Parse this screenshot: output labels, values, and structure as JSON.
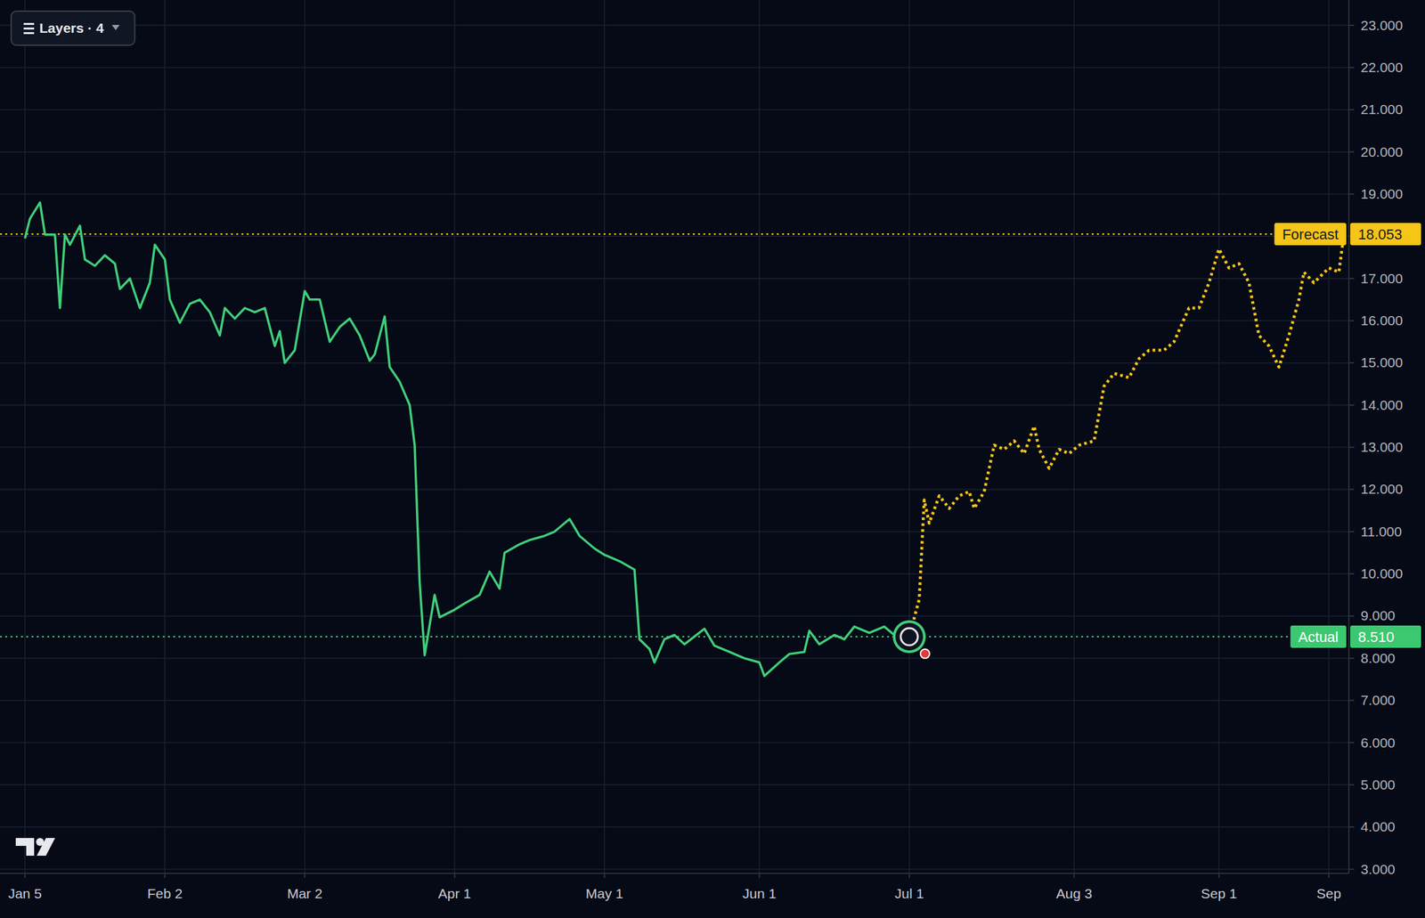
{
  "chart_data": {
    "type": "line",
    "grid": true,
    "tick_labels": true,
    "xlim": [
      0,
      270
    ],
    "ylim": [
      2.9,
      23.6
    ],
    "xticks": [
      {
        "value": 5,
        "label": "Jan 5"
      },
      {
        "value": 33,
        "label": "Feb 2"
      },
      {
        "value": 61,
        "label": "Mar 2"
      },
      {
        "value": 91,
        "label": "Apr 1"
      },
      {
        "value": 121,
        "label": "May 1"
      },
      {
        "value": 152,
        "label": "Jun 1"
      },
      {
        "value": 182,
        "label": "Jul 1"
      },
      {
        "value": 215,
        "label": "Aug 3"
      },
      {
        "value": 244,
        "label": "Sep 1"
      },
      {
        "value": 266,
        "label": "Sep"
      }
    ],
    "yticks": [
      {
        "value": 3,
        "label": "3.000"
      },
      {
        "value": 4,
        "label": "4.000"
      },
      {
        "value": 5,
        "label": "5.000"
      },
      {
        "value": 6,
        "label": "6.000"
      },
      {
        "value": 7,
        "label": "7.000"
      },
      {
        "value": 8,
        "label": "8.000"
      },
      {
        "value": 9,
        "label": "9.000"
      },
      {
        "value": 10,
        "label": "10.000"
      },
      {
        "value": 11,
        "label": "11.000"
      },
      {
        "value": 12,
        "label": "12.000"
      },
      {
        "value": 13,
        "label": "13.000"
      },
      {
        "value": 14,
        "label": "14.000"
      },
      {
        "value": 15,
        "label": "15.000"
      },
      {
        "value": 16,
        "label": "16.000"
      },
      {
        "value": 17,
        "label": "17.000"
      },
      {
        "value": 18,
        "label": "18.000"
      },
      {
        "value": 19,
        "label": "19.000"
      },
      {
        "value": 20,
        "label": "20.000"
      },
      {
        "value": 21,
        "label": "21.000"
      },
      {
        "value": 22,
        "label": "22.000"
      },
      {
        "value": 23,
        "label": "23.000"
      }
    ],
    "series": [
      {
        "color": "#3fcf7a",
        "line_style": "solid",
        "x": [
          5,
          6,
          8,
          9,
          11,
          12,
          13,
          14,
          16,
          17,
          19,
          21,
          23,
          24,
          26,
          28,
          30,
          31,
          33,
          34,
          36,
          38,
          40,
          42,
          44,
          45,
          47,
          49,
          51,
          53,
          55,
          56,
          57,
          59,
          61,
          62,
          64,
          66,
          68,
          70,
          72,
          74,
          75,
          77,
          78,
          80,
          82,
          83,
          84,
          85,
          87,
          88,
          91,
          93,
          96,
          98,
          100,
          101,
          104,
          106,
          109,
          111,
          114,
          116,
          119,
          121,
          124,
          127,
          128,
          130,
          131,
          133,
          135,
          137,
          141,
          143,
          146,
          149,
          152,
          153,
          156,
          158,
          161,
          162,
          164,
          167,
          169,
          171,
          174,
          177,
          179,
          182
        ],
        "values": [
          17.95,
          18.42,
          18.8,
          18.04,
          18.04,
          16.3,
          18.04,
          17.8,
          18.25,
          17.45,
          17.3,
          17.55,
          17.35,
          16.75,
          17.0,
          16.3,
          16.9,
          17.8,
          17.45,
          16.5,
          15.95,
          16.4,
          16.5,
          16.2,
          15.65,
          16.3,
          16.05,
          16.3,
          16.2,
          16.3,
          15.4,
          15.75,
          15.0,
          15.3,
          16.7,
          16.5,
          16.5,
          15.5,
          15.85,
          16.05,
          15.65,
          15.05,
          15.2,
          16.1,
          14.9,
          14.55,
          14.0,
          13.05,
          9.8,
          8.07,
          9.5,
          8.97,
          9.15,
          9.3,
          9.5,
          10.05,
          9.65,
          10.5,
          10.7,
          10.8,
          10.9,
          11.0,
          11.3,
          10.9,
          10.6,
          10.45,
          10.3,
          10.1,
          8.45,
          8.22,
          7.9,
          8.45,
          8.55,
          8.33,
          8.7,
          8.3,
          8.15,
          8.0,
          7.9,
          7.58,
          7.9,
          8.1,
          8.15,
          8.65,
          8.33,
          8.55,
          8.45,
          8.75,
          8.6,
          8.75,
          8.55,
          8.51
        ]
      },
      {
        "color": "#f5c518",
        "line_style": "dotted",
        "x": [
          182,
          184,
          185,
          186,
          188,
          190,
          192,
          194,
          195,
          197,
          199,
          201,
          203,
          205,
          207,
          208,
          210,
          212,
          214,
          216,
          219,
          221,
          223,
          226,
          228,
          230,
          233,
          235,
          238,
          240,
          242,
          244,
          246,
          248,
          250,
          252,
          254,
          256,
          258,
          260,
          261,
          263,
          266,
          268,
          269
        ],
        "values": [
          8.51,
          9.4,
          11.75,
          11.2,
          11.85,
          11.55,
          11.85,
          11.95,
          11.55,
          11.95,
          13.05,
          12.95,
          13.15,
          12.85,
          13.5,
          12.95,
          12.5,
          12.95,
          12.85,
          13.05,
          13.15,
          14.45,
          14.75,
          14.65,
          15.1,
          15.3,
          15.3,
          15.5,
          16.3,
          16.3,
          16.9,
          17.7,
          17.25,
          17.35,
          16.9,
          15.65,
          15.4,
          14.9,
          15.65,
          16.5,
          17.15,
          16.9,
          17.25,
          17.15,
          18.053
        ]
      }
    ],
    "annotations": [
      {
        "text": "Forecast",
        "value": 18.053,
        "label": "18.053",
        "color": "#f5c518"
      },
      {
        "text": "Actual",
        "value": 8.51,
        "label": "8.510",
        "color": "#3cc870"
      }
    ]
  },
  "toolbar": {
    "layers": "Layers · 4"
  }
}
